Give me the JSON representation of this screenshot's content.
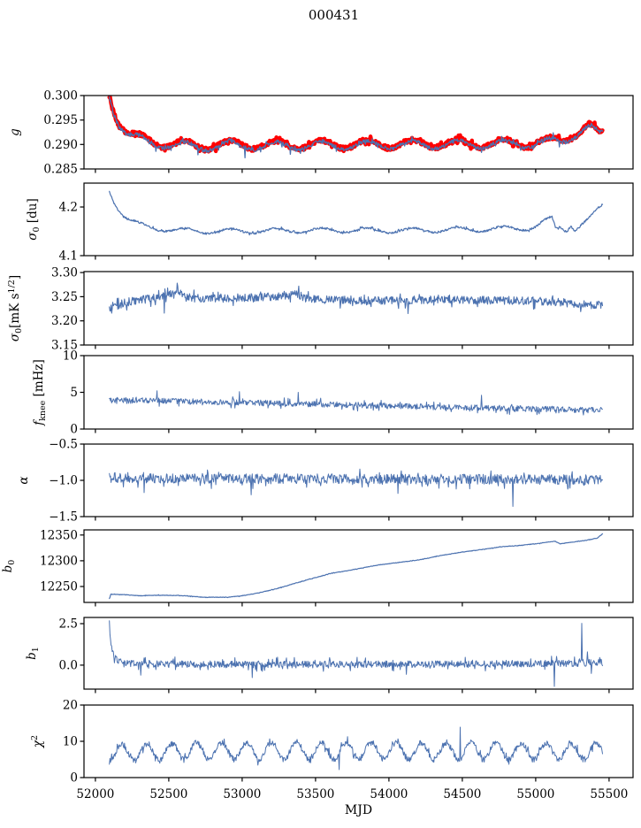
{
  "title": "000431",
  "xlabel": "MJD",
  "colors": {
    "axis": "#000000",
    "primary": "#4c72b0",
    "highlight": "#ff0000",
    "background": "#ffffff"
  },
  "x_axis": {
    "ticks": [
      52000,
      52500,
      53000,
      53500,
      54000,
      54500,
      55000,
      55500
    ],
    "tick_labels": [
      "52000",
      "52500",
      "53000",
      "53500",
      "54000",
      "54500",
      "55000",
      "55500"
    ],
    "xlim": [
      51922,
      55663
    ],
    "data_range": [
      52095,
      55455
    ]
  },
  "chart_data": [
    {
      "type": "line",
      "name": "g",
      "ylabel_parts": [
        {
          "t": "g",
          "p": "n",
          "i": true
        }
      ],
      "ylim": [
        0.285,
        0.3
      ],
      "yticks": [
        0.285,
        0.29,
        0.295,
        0.3
      ],
      "ytick_labels": [
        "0.285",
        "0.290",
        "0.295",
        "0.300"
      ],
      "series": [
        {
          "name": "gain-highlight",
          "color": "#ff0000",
          "width": 4.4,
          "noise": 0.00045,
          "osc": {
            "period": 310,
            "amp": 0.00085,
            "ref": 52300
          },
          "trend": [
            [
              52095,
              0.3004
            ],
            [
              52120,
              0.2976
            ],
            [
              52160,
              0.2946
            ],
            [
              52220,
              0.2922
            ],
            [
              52300,
              0.2912
            ],
            [
              52420,
              0.2904
            ],
            [
              52550,
              0.29
            ],
            [
              52700,
              0.2897
            ],
            [
              52900,
              0.29
            ],
            [
              53200,
              0.2899
            ],
            [
              53600,
              0.29
            ],
            [
              54000,
              0.2901
            ],
            [
              54400,
              0.2902
            ],
            [
              54700,
              0.2902
            ],
            [
              54950,
              0.2903
            ],
            [
              55100,
              0.2906
            ],
            [
              55200,
              0.2912
            ],
            [
              55300,
              0.2928
            ],
            [
              55360,
              0.2937
            ],
            [
              55400,
              0.2928
            ],
            [
              55430,
              0.2922
            ],
            [
              55455,
              0.2925
            ]
          ]
        },
        {
          "name": "gain-fit",
          "color": "#4c72b0",
          "width": 1.3,
          "noise": 0.0004,
          "osc": {
            "period": 310,
            "amp": 0.00085,
            "ref": 52300
          },
          "trend": [
            [
              52095,
              0.3002
            ],
            [
              52120,
              0.2974
            ],
            [
              52160,
              0.2944
            ],
            [
              52220,
              0.292
            ],
            [
              52300,
              0.291
            ],
            [
              52420,
              0.2902
            ],
            [
              52550,
              0.2898
            ],
            [
              52700,
              0.2895
            ],
            [
              52900,
              0.2898
            ],
            [
              53200,
              0.2897
            ],
            [
              53600,
              0.2898
            ],
            [
              54000,
              0.2899
            ],
            [
              54400,
              0.29
            ],
            [
              54700,
              0.29
            ],
            [
              54950,
              0.2901
            ],
            [
              55100,
              0.2904
            ],
            [
              55200,
              0.291
            ],
            [
              55300,
              0.2926
            ],
            [
              55360,
              0.2935
            ],
            [
              55400,
              0.2926
            ],
            [
              55430,
              0.292
            ],
            [
              55455,
              0.2923
            ]
          ],
          "spikes": [
            [
              52410,
              0.2886
            ],
            [
              52700,
              0.2879
            ],
            [
              53020,
              0.2873
            ],
            [
              53330,
              0.288
            ],
            [
              53640,
              0.2886
            ],
            [
              54650,
              0.2889
            ],
            [
              55120,
              0.2924
            ],
            [
              55160,
              0.2895
            ]
          ]
        }
      ]
    },
    {
      "type": "line",
      "name": "sigma0-du",
      "ylabel_parts": [
        {
          "t": "σ",
          "p": "n",
          "i": true
        },
        {
          "t": "0",
          "p": "sub"
        },
        {
          "t": " [du]",
          "p": "n"
        }
      ],
      "ylim": [
        4.1,
        4.249
      ],
      "yticks": [
        4.1,
        4.2
      ],
      "ytick_labels": [
        "4.1",
        "4.2"
      ],
      "series": [
        {
          "name": "sigma0-du",
          "color": "#4c72b0",
          "width": 1.2,
          "noise": 0.002,
          "osc": {
            "period": 310,
            "amp": 0.005,
            "ref": 52300
          },
          "trend": [
            [
              52095,
              4.236
            ],
            [
              52120,
              4.215
            ],
            [
              52160,
              4.195
            ],
            [
              52220,
              4.175
            ],
            [
              52300,
              4.163
            ],
            [
              52400,
              4.157
            ],
            [
              52550,
              4.152
            ],
            [
              52800,
              4.15
            ],
            [
              53100,
              4.151
            ],
            [
              53600,
              4.152
            ],
            [
              54100,
              4.152
            ],
            [
              54600,
              4.154
            ],
            [
              54900,
              4.156
            ],
            [
              55000,
              4.16
            ],
            [
              55060,
              4.17
            ],
            [
              55110,
              4.176
            ],
            [
              55135,
              4.155
            ],
            [
              55170,
              4.158
            ],
            [
              55210,
              4.152
            ],
            [
              55240,
              4.165
            ],
            [
              55265,
              4.155
            ],
            [
              55300,
              4.162
            ],
            [
              55350,
              4.172
            ],
            [
              55400,
              4.186
            ],
            [
              55440,
              4.198
            ],
            [
              55455,
              4.203
            ]
          ]
        }
      ]
    },
    {
      "type": "line",
      "name": "sigma0-mks",
      "ylabel_parts": [
        {
          "t": "σ",
          "p": "n",
          "i": true
        },
        {
          "t": "0",
          "p": "sub"
        },
        {
          "t": "[mK s",
          "p": "n"
        },
        {
          "t": "1/2",
          "p": "sup"
        },
        {
          "t": "]",
          "p": "n"
        }
      ],
      "ylim": [
        3.15,
        3.302
      ],
      "yticks": [
        3.15,
        3.2,
        3.25,
        3.3
      ],
      "ytick_labels": [
        "3.15",
        "3.20",
        "3.25",
        "3.30"
      ],
      "series": [
        {
          "name": "sigma0-mks",
          "color": "#4c72b0",
          "width": 1.1,
          "noise": 0.0085,
          "trend": [
            [
              52095,
              3.221
            ],
            [
              52140,
              3.23
            ],
            [
              52200,
              3.238
            ],
            [
              52300,
              3.243
            ],
            [
              52420,
              3.248
            ],
            [
              52520,
              3.255
            ],
            [
              52560,
              3.264
            ],
            [
              52620,
              3.248
            ],
            [
              52800,
              3.246
            ],
            [
              53000,
              3.247
            ],
            [
              53200,
              3.25
            ],
            [
              53370,
              3.256
            ],
            [
              53450,
              3.245
            ],
            [
              53700,
              3.243
            ],
            [
              54000,
              3.242
            ],
            [
              54300,
              3.244
            ],
            [
              54600,
              3.243
            ],
            [
              54900,
              3.242
            ],
            [
              55100,
              3.24
            ],
            [
              55250,
              3.236
            ],
            [
              55350,
              3.233
            ],
            [
              55455,
              3.234
            ]
          ],
          "spikes": [
            [
              52558,
              3.278
            ],
            [
              53385,
              3.272
            ],
            [
              52470,
              3.216
            ],
            [
              54130,
              3.215
            ]
          ]
        }
      ]
    },
    {
      "type": "line",
      "name": "fknee",
      "ylabel_parts": [
        {
          "t": "f",
          "p": "n",
          "i": true
        },
        {
          "t": "knee",
          "p": "sub"
        },
        {
          "t": " [mHz]",
          "p": "n"
        }
      ],
      "ylim": [
        0,
        10
      ],
      "yticks": [
        0,
        5,
        10
      ],
      "ytick_labels": [
        "0",
        "5",
        "10"
      ],
      "series": [
        {
          "name": "fknee",
          "color": "#4c72b0",
          "width": 1.0,
          "noise": 0.4,
          "trend": [
            [
              52095,
              3.85
            ],
            [
              52300,
              3.9
            ],
            [
              52600,
              3.75
            ],
            [
              53000,
              3.6
            ],
            [
              53400,
              3.45
            ],
            [
              53800,
              3.25
            ],
            [
              54200,
              3.05
            ],
            [
              54600,
              2.9
            ],
            [
              55000,
              2.75
            ],
            [
              55300,
              2.6
            ],
            [
              55455,
              2.55
            ]
          ],
          "spikes": [
            [
              52980,
              5.1
            ],
            [
              53380,
              5.0
            ],
            [
              54630,
              4.6
            ],
            [
              52420,
              5.2
            ]
          ]
        }
      ]
    },
    {
      "type": "line",
      "name": "alpha",
      "ylabel_parts": [
        {
          "t": "α",
          "p": "n",
          "i": true
        }
      ],
      "ylim": [
        -1.5,
        -0.5
      ],
      "yticks": [
        -1.5,
        -1.0,
        -0.5
      ],
      "ytick_labels": [
        "−1.5",
        "−1.0",
        "−0.5"
      ],
      "series": [
        {
          "name": "alpha",
          "color": "#4c72b0",
          "width": 1.0,
          "noise": 0.068,
          "trend": [
            [
              52095,
              -0.965
            ],
            [
              53000,
              -0.975
            ],
            [
              54000,
              -0.98
            ],
            [
              55455,
              -0.99
            ]
          ],
          "spikes": [
            [
              54845,
              -1.36
            ],
            [
              53060,
              -1.2
            ],
            [
              54060,
              -1.18
            ],
            [
              52330,
              -1.17
            ]
          ]
        }
      ]
    },
    {
      "type": "line",
      "name": "b0",
      "ylabel_parts": [
        {
          "t": "b",
          "p": "n",
          "i": true
        },
        {
          "t": "0",
          "p": "sub"
        }
      ],
      "ylim": [
        12219,
        12360
      ],
      "yticks": [
        12250,
        12300,
        12350
      ],
      "ytick_labels": [
        "12250",
        "12300",
        "12350"
      ],
      "series": [
        {
          "name": "b0",
          "color": "#4c72b0",
          "width": 1.2,
          "noise": 0.5,
          "trend": [
            [
              52095,
              12226
            ],
            [
              52105,
              12235
            ],
            [
              52200,
              12234
            ],
            [
              52300,
              12232
            ],
            [
              52450,
              12233
            ],
            [
              52600,
              12232
            ],
            [
              52750,
              12229
            ],
            [
              52900,
              12229
            ],
            [
              53000,
              12232
            ],
            [
              53120,
              12238
            ],
            [
              53250,
              12247
            ],
            [
              53445,
              12263
            ],
            [
              53600,
              12275
            ],
            [
              53780,
              12284
            ],
            [
              53930,
              12292
            ],
            [
              54050,
              12296
            ],
            [
              54210,
              12302
            ],
            [
              54350,
              12310
            ],
            [
              54500,
              12317
            ],
            [
              54640,
              12322
            ],
            [
              54760,
              12327
            ],
            [
              54900,
              12330
            ],
            [
              55000,
              12333
            ],
            [
              55080,
              12336
            ],
            [
              55130,
              12338
            ],
            [
              55165,
              12333
            ],
            [
              55220,
              12335
            ],
            [
              55300,
              12338
            ],
            [
              55370,
              12341
            ],
            [
              55420,
              12344
            ],
            [
              55440,
              12349
            ],
            [
              55455,
              12352
            ]
          ]
        }
      ]
    },
    {
      "type": "line",
      "name": "b1",
      "ylabel_parts": [
        {
          "t": "b",
          "p": "n",
          "i": true
        },
        {
          "t": "1",
          "p": "sub"
        }
      ],
      "ylim": [
        -1.44,
        2.87
      ],
      "yticks": [
        0.0,
        2.5
      ],
      "ytick_labels": [
        "0.0",
        "2.5"
      ],
      "series": [
        {
          "name": "b1",
          "color": "#4c72b0",
          "width": 1.0,
          "noise": 0.21,
          "trend": [
            [
              52095,
              2.78
            ],
            [
              52100,
              1.8
            ],
            [
              52115,
              0.9
            ],
            [
              52135,
              0.45
            ],
            [
              52170,
              0.2
            ],
            [
              52250,
              0.1
            ],
            [
              52500,
              0.06
            ],
            [
              53500,
              0.04
            ],
            [
              54500,
              0.07
            ],
            [
              55100,
              0.1
            ],
            [
              55300,
              0.12
            ],
            [
              55455,
              0.18
            ]
          ],
          "spikes": [
            [
              55128,
              -1.28
            ],
            [
              55312,
              2.52
            ],
            [
              52310,
              -0.6
            ],
            [
              53070,
              -0.75
            ],
            [
              54120,
              -0.55
            ],
            [
              55350,
              0.8
            ],
            [
              55380,
              -0.5
            ]
          ]
        }
      ]
    },
    {
      "type": "line",
      "name": "chi2",
      "ylabel_parts": [
        {
          "t": "χ",
          "p": "n",
          "i": true
        },
        {
          "t": "2",
          "p": "sup"
        }
      ],
      "ylim": [
        0,
        20
      ],
      "yticks": [
        0,
        10,
        20
      ],
      "ytick_labels": [
        "0",
        "10",
        "20"
      ],
      "series": [
        {
          "name": "chi2",
          "color": "#4c72b0",
          "width": 1.0,
          "noise": 0.85,
          "osc": {
            "period": 170,
            "amp": 2.3,
            "ref": 52180
          },
          "trend": [
            [
              52095,
              6.8
            ],
            [
              52800,
              7.4
            ],
            [
              54000,
              7.4
            ],
            [
              55455,
              7.2
            ]
          ],
          "spikes": [
            [
              54485,
              13.9
            ],
            [
              53660,
              2.2
            ]
          ]
        }
      ]
    }
  ]
}
